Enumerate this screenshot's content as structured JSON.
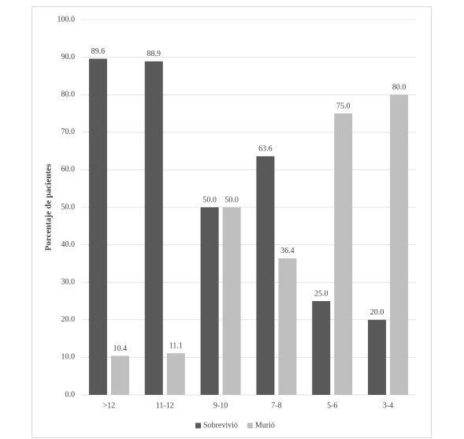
{
  "chart_data": {
    "type": "bar",
    "y_label": "Porcentaje de pacientes",
    "categories": [
      ">12",
      "11-12",
      "9-10",
      "7-8",
      "5-6",
      "3-4"
    ],
    "series": [
      {
        "name": "Sobrevivió",
        "color": "#595959",
        "values": [
          89.6,
          88.9,
          50,
          63.6,
          25,
          20
        ],
        "value_labels": [
          "89.6",
          "88.9",
          "50.0",
          "63.6",
          "25.0",
          "20.0"
        ]
      },
      {
        "name": "Murió",
        "color": "#bfbfbf",
        "values": [
          10.4,
          11.1,
          50,
          36.4,
          75,
          80
        ],
        "value_labels": [
          "10.4",
          "11.1",
          "50.0",
          "36.4",
          "75.0",
          "80.0"
        ]
      }
    ],
    "ylim": [
      0,
      100
    ],
    "yticks": [
      {
        "value": 0,
        "label": "0.0"
      },
      {
        "value": 10,
        "label": "10.0"
      },
      {
        "value": 20,
        "label": "20.0"
      },
      {
        "value": 30,
        "label": "30.0"
      },
      {
        "value": 40,
        "label": "40.0"
      },
      {
        "value": 50,
        "label": "50.0"
      },
      {
        "value": 60,
        "label": "60.0"
      },
      {
        "value": 70,
        "label": "70.0"
      },
      {
        "value": 80,
        "label": "80.0"
      },
      {
        "value": 90,
        "label": "90.0"
      },
      {
        "value": 100,
        "label": "100.0"
      }
    ],
    "grid": true,
    "legend": "bottom"
  }
}
